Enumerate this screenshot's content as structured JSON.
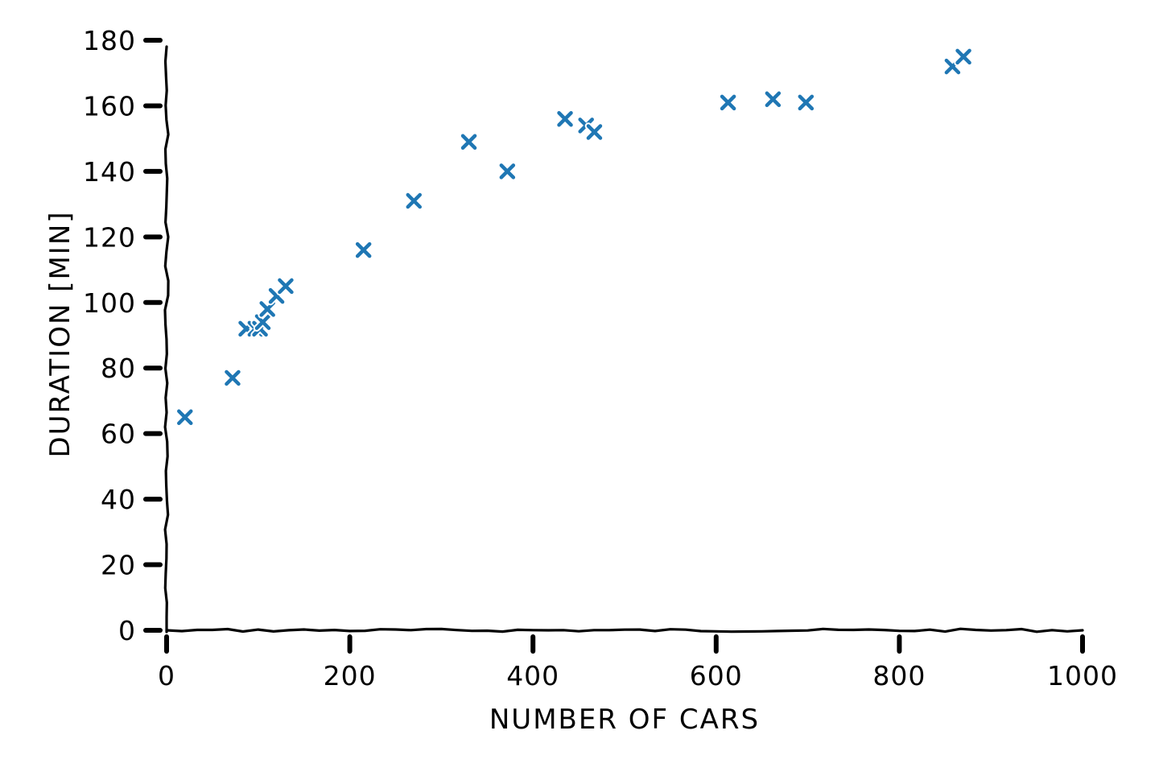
{
  "chart_data": {
    "type": "scatter",
    "title": "",
    "xlabel": "NUMBER OF CARS",
    "ylabel": "DURATION [MIN]",
    "xlim": [
      0,
      1000
    ],
    "ylim": [
      0,
      180
    ],
    "x_ticks": [
      0,
      200,
      400,
      600,
      800,
      1000
    ],
    "y_ticks": [
      0,
      20,
      40,
      60,
      80,
      100,
      120,
      140,
      160,
      180
    ],
    "x_tick_labels": [
      "0",
      "200",
      "400",
      "600",
      "800",
      "1000"
    ],
    "y_tick_labels": [
      "0",
      "20",
      "40",
      "60",
      "80",
      "100",
      "120",
      "140",
      "160",
      "180"
    ],
    "grid": false,
    "marker": "x",
    "marker_color": "#1f77b4",
    "axis_color": "#000000",
    "style": "xkcd",
    "points": [
      {
        "x": 20,
        "y": 65
      },
      {
        "x": 72,
        "y": 77
      },
      {
        "x": 87,
        "y": 92
      },
      {
        "x": 97,
        "y": 92
      },
      {
        "x": 102,
        "y": 92
      },
      {
        "x": 105,
        "y": 94
      },
      {
        "x": 110,
        "y": 98
      },
      {
        "x": 120,
        "y": 102
      },
      {
        "x": 130,
        "y": 105
      },
      {
        "x": 215,
        "y": 116
      },
      {
        "x": 270,
        "y": 131
      },
      {
        "x": 330,
        "y": 149
      },
      {
        "x": 372,
        "y": 140
      },
      {
        "x": 435,
        "y": 156
      },
      {
        "x": 458,
        "y": 154
      },
      {
        "x": 467,
        "y": 152
      },
      {
        "x": 613,
        "y": 161
      },
      {
        "x": 662,
        "y": 162
      },
      {
        "x": 698,
        "y": 161
      },
      {
        "x": 858,
        "y": 172
      },
      {
        "x": 870,
        "y": 175
      }
    ]
  }
}
